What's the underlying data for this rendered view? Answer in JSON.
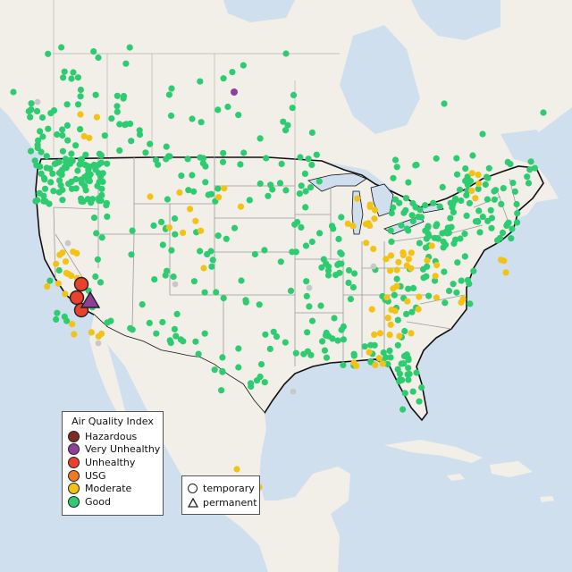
{
  "map": {
    "colors": {
      "water": "#cfdfee",
      "land": "#f2efe9",
      "country_border": "#111111",
      "state_border": "#9a9a9a",
      "marker_outline": "#222222"
    },
    "legend": {
      "title": "Air Quality Index",
      "items": [
        {
          "label": "Hazardous",
          "color": "#7e2b22"
        },
        {
          "label": "Very Unhealthy",
          "color": "#8f3f97"
        },
        {
          "label": "Unhealthy",
          "color": "#e8412c"
        },
        {
          "label": "USG",
          "color": "#ef7a22"
        },
        {
          "label": "Moderate",
          "color": "#f2c214"
        },
        {
          "label": "Good",
          "color": "#2ecc71"
        }
      ]
    },
    "monitor_type_legend": {
      "items": [
        {
          "label": "temporary",
          "icon": "circle-icon"
        },
        {
          "label": "permanent",
          "icon": "triangle-icon"
        }
      ]
    },
    "place_labels": []
  }
}
